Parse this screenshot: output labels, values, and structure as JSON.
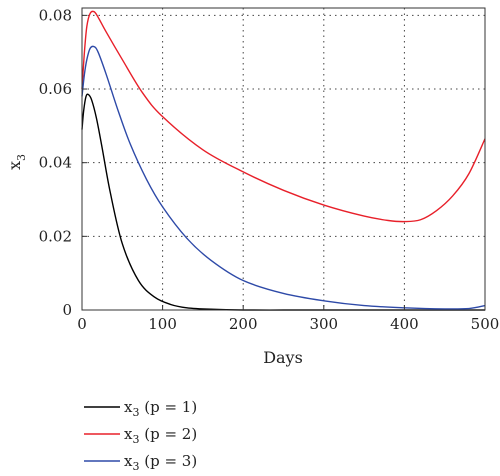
{
  "chart_data": {
    "type": "line",
    "xlabel": "Days",
    "ylabel_main": "x",
    "ylabel_sub": "3",
    "xlim": [
      0,
      500
    ],
    "ylim": [
      0,
      0.082
    ],
    "xticks": [
      0,
      100,
      200,
      300,
      400,
      500
    ],
    "xtick_labels": [
      "0",
      "100",
      "200",
      "300",
      "400",
      "500"
    ],
    "yticks": [
      0,
      0.02,
      0.04,
      0.06,
      0.08
    ],
    "ytick_labels": [
      "0",
      "0.02",
      "0.04",
      "0.06",
      "0.08"
    ],
    "grid": "dotted",
    "legend_position": "below",
    "series": [
      {
        "name": "x3 (p = 1)",
        "legend_main": "x",
        "legend_sub": "3",
        "legend_rest": " (p = 1)",
        "color": "#000000",
        "x": [
          0,
          2,
          5,
          8,
          12,
          18,
          25,
          35,
          50,
          70,
          90,
          110,
          130,
          160,
          200,
          250,
          300,
          400,
          500
        ],
        "y": [
          0.049,
          0.054,
          0.058,
          0.0585,
          0.057,
          0.052,
          0.044,
          0.032,
          0.018,
          0.008,
          0.0035,
          0.0015,
          0.0006,
          0.0002,
          0.0,
          0.0,
          0.0,
          0.0,
          0.0
        ]
      },
      {
        "name": "x3 (p = 2)",
        "legend_main": "x",
        "legend_sub": "3",
        "legend_rest": " (p = 2)",
        "color": "#e8202a",
        "x": [
          0,
          3,
          6,
          10,
          15,
          20,
          30,
          50,
          75,
          100,
          150,
          200,
          250,
          300,
          350,
          380,
          400,
          420,
          440,
          460,
          480,
          500
        ],
        "y": [
          0.06,
          0.07,
          0.077,
          0.0805,
          0.081,
          0.0795,
          0.0755,
          0.068,
          0.059,
          0.0525,
          0.0435,
          0.0375,
          0.0325,
          0.0285,
          0.0255,
          0.0243,
          0.024,
          0.0245,
          0.027,
          0.031,
          0.037,
          0.0465
        ]
      },
      {
        "name": "x3 (p = 3)",
        "legend_main": "x",
        "legend_sub": "3",
        "legend_rest": " (p = 3)",
        "color": "#2e4aa8",
        "x": [
          0,
          3,
          6,
          10,
          15,
          20,
          30,
          45,
          60,
          80,
          100,
          130,
          160,
          200,
          250,
          300,
          350,
          400,
          450,
          480,
          500
        ],
        "y": [
          0.058,
          0.064,
          0.068,
          0.071,
          0.0715,
          0.07,
          0.064,
          0.054,
          0.045,
          0.0355,
          0.028,
          0.0195,
          0.0135,
          0.008,
          0.0045,
          0.0025,
          0.0012,
          0.0006,
          0.0003,
          0.0004,
          0.0012
        ]
      }
    ]
  }
}
